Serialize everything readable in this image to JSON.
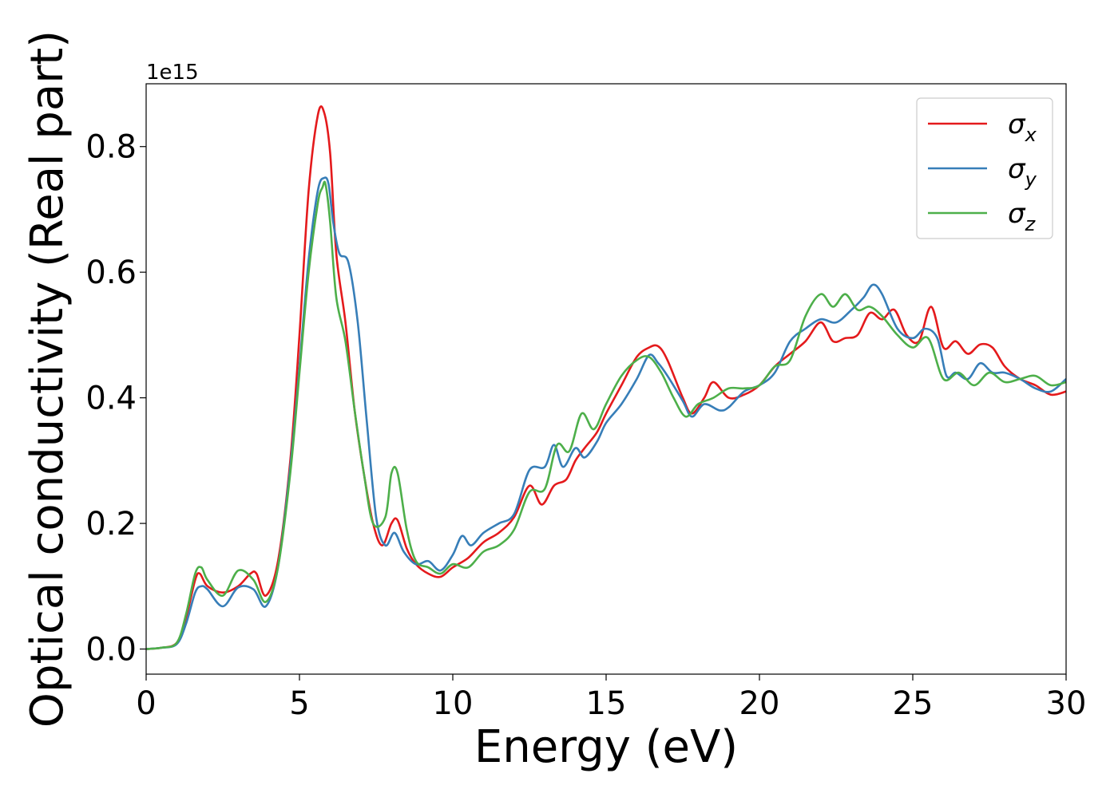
{
  "chart_data": {
    "type": "line",
    "title": "",
    "xlabel": "Energy (eV)",
    "ylabel": "Optical conductivity (Real part)",
    "y_offset_label": "1e15",
    "xlim": [
      0,
      30
    ],
    "ylim": [
      -0.04,
      0.9
    ],
    "xticks": [
      0,
      5,
      10,
      15,
      20,
      25,
      30
    ],
    "xtick_labels": [
      "0",
      "5",
      "10",
      "15",
      "20",
      "25",
      "30"
    ],
    "yticks": [
      0.0,
      0.2,
      0.4,
      0.6,
      0.8
    ],
    "ytick_labels": [
      "0.0",
      "0.2",
      "0.4",
      "0.6",
      "0.8"
    ],
    "grid": false,
    "legend_position": "top-right",
    "series": [
      {
        "name": "σ",
        "subscript": "x",
        "color": "#e41a1c",
        "x": [
          0,
          0.5,
          1.0,
          1.3,
          1.6,
          1.75,
          2.0,
          2.5,
          3.0,
          3.4,
          3.6,
          3.9,
          4.3,
          4.7,
          5.0,
          5.3,
          5.6,
          5.8,
          6.0,
          6.2,
          6.5,
          6.8,
          7.1,
          7.4,
          7.7,
          8.0,
          8.2,
          8.5,
          8.8,
          9.2,
          9.6,
          10.0,
          10.5,
          11.0,
          11.5,
          12.0,
          12.5,
          12.9,
          13.3,
          13.7,
          14.0,
          14.3,
          14.7,
          15.0,
          15.5,
          16.0,
          16.4,
          16.7,
          17.0,
          17.5,
          17.8,
          18.2,
          18.5,
          19.0,
          19.5,
          20.0,
          20.5,
          21.0,
          21.5,
          22.0,
          22.4,
          22.8,
          23.2,
          23.6,
          24.0,
          24.4,
          24.8,
          25.2,
          25.6,
          26.0,
          26.4,
          26.8,
          27.2,
          27.6,
          28.0,
          28.5,
          29.0,
          29.5,
          30.0
        ],
        "values": [
          0,
          0.002,
          0.01,
          0.05,
          0.11,
          0.12,
          0.1,
          0.09,
          0.1,
          0.12,
          0.12,
          0.085,
          0.14,
          0.3,
          0.5,
          0.73,
          0.85,
          0.855,
          0.79,
          0.63,
          0.52,
          0.38,
          0.28,
          0.2,
          0.165,
          0.2,
          0.205,
          0.16,
          0.135,
          0.12,
          0.115,
          0.13,
          0.145,
          0.17,
          0.185,
          0.21,
          0.26,
          0.23,
          0.26,
          0.27,
          0.3,
          0.32,
          0.345,
          0.375,
          0.42,
          0.465,
          0.48,
          0.482,
          0.46,
          0.4,
          0.375,
          0.4,
          0.425,
          0.4,
          0.405,
          0.42,
          0.45,
          0.47,
          0.49,
          0.52,
          0.49,
          0.495,
          0.5,
          0.535,
          0.525,
          0.54,
          0.5,
          0.49,
          0.545,
          0.48,
          0.49,
          0.47,
          0.485,
          0.48,
          0.45,
          0.43,
          0.42,
          0.405,
          0.41
        ]
      },
      {
        "name": "σ",
        "subscript": "y",
        "color": "#377eb8",
        "x": [
          0,
          0.5,
          1.0,
          1.3,
          1.6,
          1.8,
          2.0,
          2.5,
          3.0,
          3.5,
          3.9,
          4.3,
          4.7,
          5.0,
          5.3,
          5.6,
          5.8,
          5.95,
          6.1,
          6.3,
          6.6,
          6.9,
          7.2,
          7.5,
          7.8,
          8.1,
          8.4,
          8.8,
          9.2,
          9.6,
          10.0,
          10.3,
          10.6,
          11.0,
          11.5,
          12.0,
          12.5,
          13.0,
          13.3,
          13.6,
          14.0,
          14.3,
          14.7,
          15.0,
          15.5,
          16.0,
          16.4,
          16.7,
          17.0,
          17.5,
          17.8,
          18.2,
          18.7,
          19.0,
          19.5,
          20.0,
          20.5,
          21.0,
          21.5,
          22.0,
          22.5,
          23.0,
          23.4,
          23.7,
          24.0,
          24.5,
          25.0,
          25.4,
          25.8,
          26.1,
          26.4,
          26.8,
          27.2,
          27.6,
          28.0,
          28.5,
          29.0,
          29.5,
          30.0
        ],
        "values": [
          0,
          0.002,
          0.008,
          0.04,
          0.09,
          0.1,
          0.095,
          0.068,
          0.098,
          0.095,
          0.068,
          0.13,
          0.29,
          0.45,
          0.62,
          0.73,
          0.75,
          0.74,
          0.68,
          0.63,
          0.615,
          0.52,
          0.36,
          0.21,
          0.165,
          0.185,
          0.155,
          0.135,
          0.14,
          0.125,
          0.15,
          0.18,
          0.165,
          0.185,
          0.2,
          0.215,
          0.285,
          0.29,
          0.325,
          0.29,
          0.32,
          0.305,
          0.33,
          0.36,
          0.39,
          0.43,
          0.468,
          0.455,
          0.435,
          0.395,
          0.37,
          0.39,
          0.38,
          0.385,
          0.41,
          0.42,
          0.44,
          0.49,
          0.51,
          0.525,
          0.52,
          0.54,
          0.56,
          0.58,
          0.565,
          0.51,
          0.495,
          0.51,
          0.495,
          0.435,
          0.44,
          0.43,
          0.455,
          0.44,
          0.44,
          0.43,
          0.415,
          0.41,
          0.43
        ]
      },
      {
        "name": "σ",
        "subscript": "z",
        "color": "#4daf4a",
        "x": [
          0,
          0.5,
          1.0,
          1.3,
          1.6,
          1.8,
          2.0,
          2.5,
          3.0,
          3.5,
          3.9,
          4.3,
          4.7,
          5.0,
          5.3,
          5.6,
          5.75,
          5.85,
          6.0,
          6.2,
          6.5,
          6.8,
          7.1,
          7.4,
          7.8,
          8.0,
          8.2,
          8.5,
          8.8,
          9.2,
          9.6,
          10.0,
          10.5,
          11.0,
          11.5,
          12.0,
          12.5,
          13.0,
          13.4,
          13.8,
          14.2,
          14.6,
          15.0,
          15.5,
          16.0,
          16.4,
          16.8,
          17.2,
          17.6,
          18.0,
          18.5,
          19.0,
          19.5,
          20.0,
          20.5,
          21.0,
          21.5,
          22.0,
          22.4,
          22.8,
          23.2,
          23.6,
          24.0,
          24.5,
          25.0,
          25.5,
          26.0,
          26.5,
          27.0,
          27.5,
          28.0,
          28.5,
          29.0,
          29.5,
          30.0
        ],
        "values": [
          0,
          0.002,
          0.01,
          0.055,
          0.12,
          0.13,
          0.11,
          0.085,
          0.125,
          0.11,
          0.075,
          0.13,
          0.28,
          0.44,
          0.6,
          0.71,
          0.735,
          0.74,
          0.68,
          0.56,
          0.49,
          0.38,
          0.28,
          0.2,
          0.21,
          0.28,
          0.28,
          0.19,
          0.14,
          0.13,
          0.12,
          0.135,
          0.13,
          0.155,
          0.165,
          0.19,
          0.25,
          0.255,
          0.325,
          0.315,
          0.375,
          0.35,
          0.39,
          0.435,
          0.46,
          0.465,
          0.44,
          0.4,
          0.37,
          0.39,
          0.4,
          0.415,
          0.415,
          0.42,
          0.45,
          0.46,
          0.53,
          0.565,
          0.545,
          0.565,
          0.54,
          0.545,
          0.53,
          0.5,
          0.48,
          0.495,
          0.43,
          0.44,
          0.42,
          0.44,
          0.425,
          0.43,
          0.435,
          0.42,
          0.425
        ]
      }
    ]
  }
}
